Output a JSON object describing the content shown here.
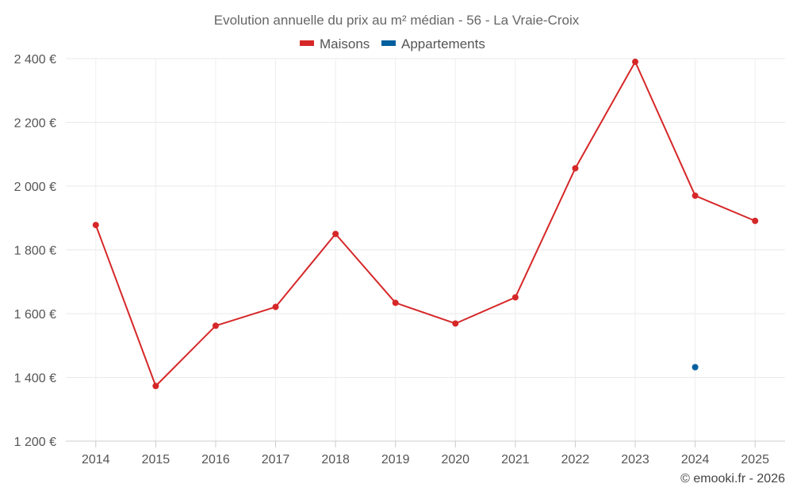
{
  "chart_data": {
    "type": "line",
    "title": "Evolution annuelle du prix au m² médian - 56 - La Vraie-Croix",
    "xlabel": "",
    "ylabel": "",
    "categories": [
      "2014",
      "2015",
      "2016",
      "2017",
      "2018",
      "2019",
      "2020",
      "2021",
      "2022",
      "2023",
      "2024",
      "2025"
    ],
    "ylim": [
      1200,
      2400
    ],
    "yticks": [
      1200,
      1400,
      1600,
      1800,
      2000,
      2200,
      2400
    ],
    "ytick_labels": [
      "1 200 €",
      "1 400 €",
      "1 600 €",
      "1 800 €",
      "2 000 €",
      "2 200 €",
      "2 400 €"
    ],
    "series": [
      {
        "name": "Maisons",
        "color": "#d62728",
        "values": [
          1878,
          1373,
          1562,
          1621,
          1850,
          1634,
          1569,
          1651,
          2056,
          2390,
          1970,
          1891
        ]
      },
      {
        "name": "Appartements",
        "color": "#005f9e",
        "values": [
          null,
          null,
          null,
          null,
          null,
          null,
          null,
          null,
          null,
          null,
          1432,
          null
        ]
      }
    ],
    "legend_position": "top-center",
    "grid": true
  },
  "credit": "© emooki.fr - 2026"
}
